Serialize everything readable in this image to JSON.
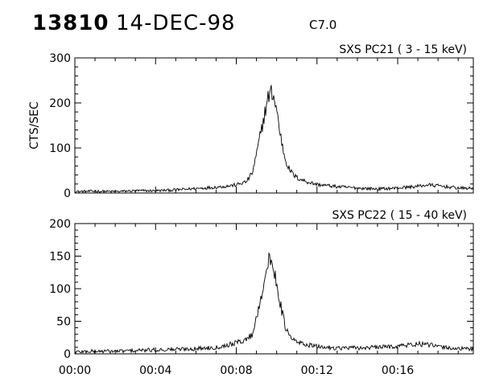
{
  "header": {
    "event_id": "13810",
    "date": "14-DEC-98",
    "flare_class": "C7.0"
  },
  "x_ticks": [
    "00:00",
    "00:04",
    "00:08",
    "00:12",
    "00:16"
  ],
  "chart_data": [
    {
      "type": "line",
      "title": "SXS PC21  (  3 - 15 keV)",
      "ylabel": "CTS/SEC",
      "xlim": [
        0,
        19.75
      ],
      "ylim": [
        0,
        300
      ],
      "yticks": [
        0,
        100,
        200,
        300
      ],
      "series": [
        {
          "values": [
            [
              0,
              3
            ],
            [
              1,
              4
            ],
            [
              2,
              3
            ],
            [
              3,
              5
            ],
            [
              4,
              5
            ],
            [
              5,
              7
            ],
            [
              6,
              10
            ],
            [
              7,
              13
            ],
            [
              7.5,
              15
            ],
            [
              8,
              18
            ],
            [
              8.5,
              25
            ],
            [
              8.8,
              45
            ],
            [
              9.0,
              85
            ],
            [
              9.2,
              130
            ],
            [
              9.4,
              175
            ],
            [
              9.6,
              215
            ],
            [
              9.8,
              225
            ],
            [
              10.0,
              185
            ],
            [
              10.2,
              125
            ],
            [
              10.4,
              80
            ],
            [
              10.6,
              55
            ],
            [
              10.8,
              42
            ],
            [
              11.0,
              34
            ],
            [
              11.5,
              25
            ],
            [
              12,
              19
            ],
            [
              13,
              14
            ],
            [
              14,
              11
            ],
            [
              15,
              9
            ],
            [
              16,
              11
            ],
            [
              17,
              15
            ],
            [
              17.5,
              18
            ],
            [
              18,
              16
            ],
            [
              19,
              11
            ],
            [
              19.75,
              10
            ]
          ]
        }
      ]
    },
    {
      "type": "line",
      "title": "SXS PC22  ( 15 - 40 keV)",
      "ylabel": "",
      "xlim": [
        0,
        19.75
      ],
      "ylim": [
        0,
        200
      ],
      "yticks": [
        0,
        50,
        100,
        150,
        200
      ],
      "series": [
        {
          "values": [
            [
              0,
              3
            ],
            [
              1,
              4
            ],
            [
              2,
              4
            ],
            [
              3,
              5
            ],
            [
              4,
              6
            ],
            [
              5,
              7
            ],
            [
              6,
              8
            ],
            [
              7,
              10
            ],
            [
              7.5,
              13
            ],
            [
              8,
              17
            ],
            [
              8.5,
              22
            ],
            [
              8.8,
              30
            ],
            [
              9.0,
              55
            ],
            [
              9.2,
              85
            ],
            [
              9.4,
              115
            ],
            [
              9.6,
              140
            ],
            [
              9.8,
              140
            ],
            [
              10.0,
              110
            ],
            [
              10.2,
              75
            ],
            [
              10.4,
              45
            ],
            [
              10.6,
              28
            ],
            [
              10.8,
              22
            ],
            [
              11.0,
              18
            ],
            [
              11.5,
              14
            ],
            [
              12,
              11
            ],
            [
              13,
              9
            ],
            [
              14,
              9
            ],
            [
              15,
              10
            ],
            [
              16,
              12
            ],
            [
              17,
              15
            ],
            [
              17.5,
              14
            ],
            [
              18,
              11
            ],
            [
              19,
              8
            ],
            [
              19.75,
              7
            ]
          ]
        }
      ]
    }
  ]
}
